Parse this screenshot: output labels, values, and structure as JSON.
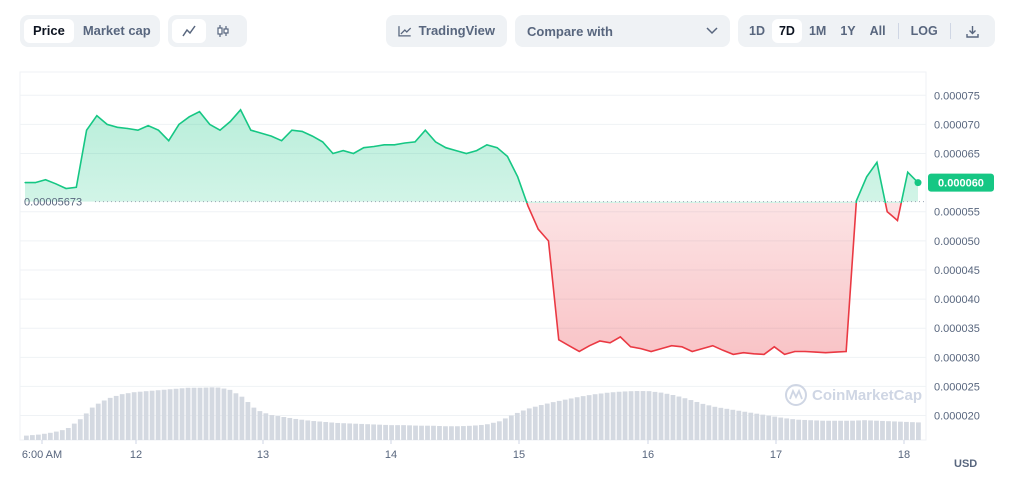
{
  "toolbar": {
    "type_tabs": [
      "Price",
      "Market cap"
    ],
    "tradingview_label": "TradingView",
    "compare_label": "Compare with",
    "ranges": [
      "1D",
      "7D",
      "1M",
      "1Y",
      "All"
    ],
    "log_label": "LOG",
    "active_range": "7D"
  },
  "currency_label": "USD",
  "watermark": "CoinMarketCap",
  "chart_data": {
    "type": "area",
    "series": [
      {
        "values": [
          6e-05,
          6e-05,
          6.05e-05,
          5.98e-05,
          5.9e-05,
          5.92e-05,
          6.9e-05,
          7.15e-05,
          7e-05,
          6.95e-05,
          6.93e-05,
          6.9e-05,
          6.98e-05,
          6.9e-05,
          6.72e-05,
          7e-05,
          7.13e-05,
          7.22e-05,
          7e-05,
          6.9e-05,
          7.05e-05,
          7.25e-05,
          6.9e-05,
          6.85e-05,
          6.8e-05,
          6.72e-05,
          6.9e-05,
          6.88e-05,
          6.8e-05,
          6.7e-05,
          6.5e-05,
          6.55e-05,
          6.5e-05,
          6.6e-05,
          6.62e-05,
          6.65e-05,
          6.65e-05,
          6.68e-05,
          6.7e-05,
          6.9e-05,
          6.7e-05,
          6.6e-05,
          6.55e-05,
          6.5e-05,
          6.55e-05,
          6.65e-05,
          6.6e-05,
          6.45e-05,
          6.1e-05,
          5.6e-05,
          5.2e-05,
          5e-05,
          3.3e-05,
          3.2e-05,
          3.1e-05,
          3.2e-05,
          3.28e-05,
          3.25e-05,
          3.35e-05,
          3.18e-05,
          3.15e-05,
          3.1e-05,
          3.15e-05,
          3.2e-05,
          3.18e-05,
          3.1e-05,
          3.15e-05,
          3.2e-05,
          3.12e-05,
          3.05e-05,
          3.08e-05,
          3.06e-05,
          3.05e-05,
          3.18e-05,
          3.05e-05,
          3.1e-05,
          3.1e-05,
          3.09e-05,
          3.08e-05,
          3.09e-05,
          3.1e-05,
          5.69e-05,
          6.1e-05,
          6.35e-05,
          5.5e-05,
          5.35e-05,
          6.18e-05,
          6e-05
        ]
      }
    ],
    "reference_value": 5.673e-05,
    "reference_label": "0.00005673",
    "current_value": 6e-05,
    "current_label": "0.000060",
    "y_ticks": [
      7.5e-05,
      7e-05,
      6.5e-05,
      5.5e-05,
      5e-05,
      4.5e-05,
      4e-05,
      3.5e-05,
      3e-05,
      2.5e-05,
      2e-05
    ],
    "y_tick_labels": [
      "0.000075",
      "0.000070",
      "0.000065",
      "0.000055",
      "0.000050",
      "0.000045",
      "0.000040",
      "0.000035",
      "0.000030",
      "0.000025",
      "0.000020"
    ],
    "ylim": [
      1.58e-05,
      7.9e-05
    ],
    "x_tick_labels": [
      "6:00 AM",
      "12",
      "13",
      "14",
      "15",
      "16",
      "17",
      "18"
    ],
    "volume": [
      0.08,
      0.1,
      0.14,
      0.2,
      0.38,
      0.62,
      0.75,
      0.83,
      0.87,
      0.89,
      0.91,
      0.93,
      0.95,
      0.95,
      0.96,
      0.92,
      0.78,
      0.55,
      0.46,
      0.42,
      0.38,
      0.35,
      0.33,
      0.31,
      0.3,
      0.29,
      0.28,
      0.27,
      0.27,
      0.26,
      0.26,
      0.25,
      0.25,
      0.26,
      0.28,
      0.34,
      0.46,
      0.56,
      0.63,
      0.69,
      0.74,
      0.79,
      0.83,
      0.86,
      0.88,
      0.89,
      0.89,
      0.86,
      0.81,
      0.74,
      0.66,
      0.6,
      0.56,
      0.52,
      0.48,
      0.44,
      0.4,
      0.37,
      0.36,
      0.35,
      0.35,
      0.35,
      0.36,
      0.35,
      0.34,
      0.33,
      0.32
    ],
    "colors": {
      "up": "#16c784",
      "down": "#ea3943",
      "ref": "#9aa4b2"
    }
  }
}
